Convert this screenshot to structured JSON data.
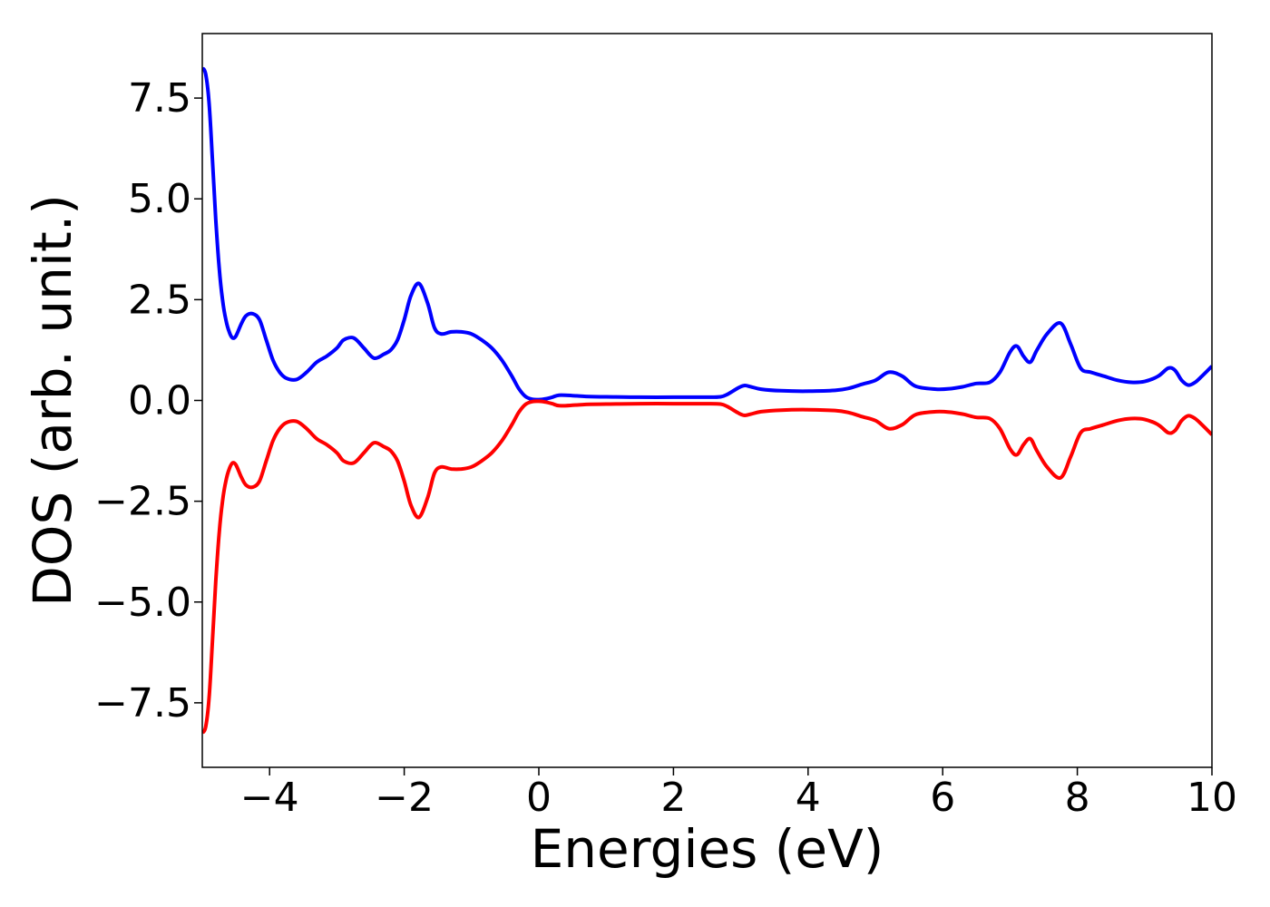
{
  "chart_data": {
    "type": "line",
    "title": "",
    "xlabel": "Energies (eV)",
    "ylabel": "DOS (arb. unit.)",
    "xlim": [
      -5,
      10
    ],
    "ylim": [
      -9.1,
      9.1
    ],
    "grid": false,
    "x_ticks": [
      {
        "value": -4,
        "label": "−4"
      },
      {
        "value": -2,
        "label": "−2"
      },
      {
        "value": 0,
        "label": "0"
      },
      {
        "value": 2,
        "label": "2"
      },
      {
        "value": 4,
        "label": "4"
      },
      {
        "value": 6,
        "label": "6"
      },
      {
        "value": 8,
        "label": "8"
      },
      {
        "value": 10,
        "label": "10"
      }
    ],
    "y_ticks": [
      {
        "value": 7.5,
        "label": "7.5"
      },
      {
        "value": 5.0,
        "label": "5.0"
      },
      {
        "value": 2.5,
        "label": "2.5"
      },
      {
        "value": 0.0,
        "label": "0.0"
      },
      {
        "value": -2.5,
        "label": "−2.5"
      },
      {
        "value": -5.0,
        "label": "−5.0"
      },
      {
        "value": -7.5,
        "label": "−7.5"
      }
    ],
    "series": [
      {
        "color": "#0000ff",
        "x": [
          -5.0,
          -4.95,
          -4.9,
          -4.85,
          -4.8,
          -4.75,
          -4.7,
          -4.65,
          -4.6,
          -4.55,
          -4.5,
          -4.42,
          -4.35,
          -4.25,
          -4.15,
          -4.05,
          -3.95,
          -3.85,
          -3.75,
          -3.6,
          -3.45,
          -3.3,
          -3.15,
          -3.0,
          -2.9,
          -2.75,
          -2.6,
          -2.45,
          -2.3,
          -2.2,
          -2.1,
          -2.0,
          -1.9,
          -1.78,
          -1.65,
          -1.55,
          -1.45,
          -1.3,
          -1.15,
          -1.0,
          -0.85,
          -0.7,
          -0.55,
          -0.4,
          -0.3,
          -0.2,
          -0.1,
          0.0,
          0.1,
          0.2,
          0.3,
          0.5,
          0.7,
          1.0,
          1.5,
          2.0,
          2.5,
          2.7,
          2.8,
          2.95,
          3.05,
          3.15,
          3.3,
          3.6,
          4.0,
          4.4,
          4.6,
          4.8,
          5.0,
          5.2,
          5.4,
          5.6,
          5.9,
          6.1,
          6.3,
          6.5,
          6.7,
          6.85,
          7.0,
          7.1,
          7.2,
          7.3,
          7.4,
          7.55,
          7.75,
          7.9,
          8.05,
          8.2,
          8.4,
          8.6,
          8.8,
          9.0,
          9.2,
          9.35,
          9.45,
          9.55,
          9.65,
          9.75,
          9.85,
          10.0
        ],
        "y": [
          8.25,
          8.1,
          7.4,
          6.0,
          4.5,
          3.3,
          2.5,
          2.0,
          1.7,
          1.55,
          1.6,
          1.9,
          2.1,
          2.15,
          2.0,
          1.5,
          1.0,
          0.7,
          0.55,
          0.52,
          0.7,
          0.95,
          1.1,
          1.3,
          1.5,
          1.55,
          1.3,
          1.05,
          1.15,
          1.25,
          1.5,
          2.0,
          2.6,
          2.9,
          2.4,
          1.8,
          1.65,
          1.7,
          1.7,
          1.65,
          1.5,
          1.3,
          1.0,
          0.6,
          0.3,
          0.1,
          0.03,
          0.02,
          0.04,
          0.08,
          0.13,
          0.12,
          0.1,
          0.09,
          0.08,
          0.08,
          0.08,
          0.09,
          0.15,
          0.3,
          0.37,
          0.34,
          0.28,
          0.24,
          0.23,
          0.25,
          0.3,
          0.4,
          0.5,
          0.7,
          0.6,
          0.35,
          0.28,
          0.29,
          0.34,
          0.42,
          0.45,
          0.7,
          1.2,
          1.35,
          1.1,
          0.95,
          1.25,
          1.65,
          1.92,
          1.4,
          0.8,
          0.7,
          0.6,
          0.5,
          0.45,
          0.47,
          0.6,
          0.8,
          0.75,
          0.5,
          0.38,
          0.45,
          0.6,
          0.85
        ]
      },
      {
        "color": "#ff0000",
        "x": [
          -5.0,
          -4.95,
          -4.9,
          -4.85,
          -4.8,
          -4.75,
          -4.7,
          -4.65,
          -4.6,
          -4.55,
          -4.5,
          -4.42,
          -4.35,
          -4.25,
          -4.15,
          -4.05,
          -3.95,
          -3.85,
          -3.75,
          -3.6,
          -3.45,
          -3.3,
          -3.15,
          -3.0,
          -2.9,
          -2.75,
          -2.6,
          -2.45,
          -2.3,
          -2.2,
          -2.1,
          -2.0,
          -1.9,
          -1.78,
          -1.65,
          -1.55,
          -1.45,
          -1.3,
          -1.15,
          -1.0,
          -0.85,
          -0.7,
          -0.55,
          -0.4,
          -0.3,
          -0.2,
          -0.1,
          0.0,
          0.1,
          0.2,
          0.3,
          0.5,
          0.7,
          1.0,
          1.5,
          2.0,
          2.5,
          2.7,
          2.8,
          2.95,
          3.05,
          3.15,
          3.3,
          3.6,
          4.0,
          4.4,
          4.6,
          4.8,
          5.0,
          5.2,
          5.4,
          5.6,
          5.9,
          6.1,
          6.3,
          6.5,
          6.7,
          6.85,
          7.0,
          7.1,
          7.2,
          7.3,
          7.4,
          7.55,
          7.75,
          7.9,
          8.05,
          8.2,
          8.4,
          8.6,
          8.8,
          9.0,
          9.2,
          9.35,
          9.45,
          9.55,
          9.65,
          9.75,
          9.85,
          10.0
        ],
        "y": [
          -8.25,
          -8.1,
          -7.4,
          -6.0,
          -4.5,
          -3.3,
          -2.5,
          -2.0,
          -1.7,
          -1.55,
          -1.6,
          -1.9,
          -2.1,
          -2.15,
          -2.0,
          -1.5,
          -1.0,
          -0.7,
          -0.55,
          -0.52,
          -0.7,
          -0.95,
          -1.1,
          -1.3,
          -1.5,
          -1.55,
          -1.3,
          -1.05,
          -1.15,
          -1.25,
          -1.5,
          -2.0,
          -2.6,
          -2.9,
          -2.4,
          -1.8,
          -1.65,
          -1.7,
          -1.7,
          -1.65,
          -1.5,
          -1.3,
          -1.0,
          -0.6,
          -0.3,
          -0.1,
          -0.03,
          -0.02,
          -0.04,
          -0.08,
          -0.13,
          -0.12,
          -0.1,
          -0.09,
          -0.08,
          -0.08,
          -0.08,
          -0.09,
          -0.15,
          -0.3,
          -0.37,
          -0.34,
          -0.28,
          -0.24,
          -0.23,
          -0.25,
          -0.3,
          -0.4,
          -0.5,
          -0.7,
          -0.6,
          -0.35,
          -0.28,
          -0.29,
          -0.34,
          -0.42,
          -0.45,
          -0.7,
          -1.2,
          -1.35,
          -1.1,
          -0.95,
          -1.25,
          -1.65,
          -1.92,
          -1.4,
          -0.8,
          -0.7,
          -0.6,
          -0.5,
          -0.45,
          -0.47,
          -0.6,
          -0.8,
          -0.75,
          -0.5,
          -0.38,
          -0.45,
          -0.6,
          -0.85
        ]
      }
    ]
  }
}
